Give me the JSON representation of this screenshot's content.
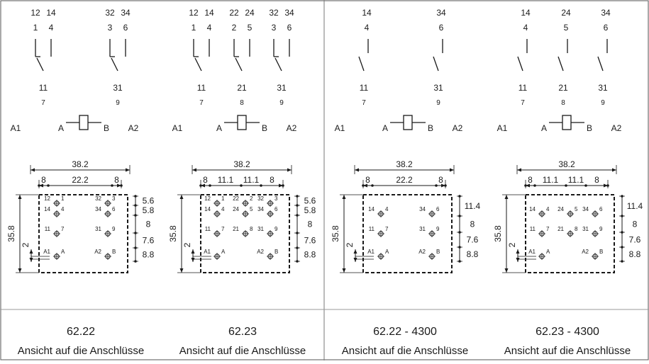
{
  "panels": [
    {
      "id": "6222",
      "model": "62.22",
      "caption": "Ansicht auf die Anschlüsse",
      "schema": {
        "contacts": [
          {
            "top_a": "12",
            "top_b": "14",
            "mid_a": "1",
            "mid_b": "4",
            "common": "11",
            "pin": "7",
            "nc": true
          },
          {
            "top_a": "32",
            "top_b": "34",
            "mid_a": "3",
            "mid_b": "6",
            "common": "31",
            "pin": "9",
            "nc": true
          }
        ],
        "coil": {
          "left": "A1",
          "a": "A",
          "b": "B",
          "right": "A2"
        }
      },
      "dims": {
        "width": "38.2",
        "left": "8",
        "middle": [
          "22.2"
        ],
        "right": "8",
        "height": "35.8",
        "offset": "2",
        "right_dims": [
          "5.6",
          "5.8",
          "8",
          "7.6",
          "8.8"
        ]
      },
      "pins": [
        [
          "12",
          "1"
        ],
        [
          "32",
          "3"
        ],
        [
          "14",
          "4"
        ],
        [
          "34",
          "6"
        ],
        [
          "11",
          "7"
        ],
        [
          "31",
          "9"
        ],
        [
          "A1",
          "A"
        ],
        [
          "A2",
          "B"
        ]
      ]
    },
    {
      "id": "6223",
      "model": "62.23",
      "caption": "Ansicht auf die Anschlüsse",
      "schema": {
        "contacts": [
          {
            "top_a": "12",
            "top_b": "14",
            "mid_a": "1",
            "mid_b": "4",
            "common": "11",
            "pin": "7",
            "nc": true
          },
          {
            "top_a": "22",
            "top_b": "24",
            "mid_a": "2",
            "mid_b": "5",
            "common": "21",
            "pin": "8",
            "nc": true
          },
          {
            "top_a": "32",
            "top_b": "34",
            "mid_a": "3",
            "mid_b": "6",
            "common": "31",
            "pin": "9",
            "nc": true
          }
        ],
        "coil": {
          "left": "A1",
          "a": "A",
          "b": "B",
          "right": "A2"
        }
      },
      "dims": {
        "width": "38.2",
        "left": "8",
        "middle": [
          "11.1",
          "11.1"
        ],
        "right": "8",
        "height": "35.8",
        "offset": "2",
        "right_dims": [
          "5.6",
          "5.8",
          "8",
          "7.6",
          "8.8"
        ]
      },
      "pins": [
        [
          "12",
          "1"
        ],
        [
          "22",
          "2"
        ],
        [
          "32",
          "3"
        ],
        [
          "14",
          "4"
        ],
        [
          "24",
          "5"
        ],
        [
          "34",
          "6"
        ],
        [
          "11",
          "7"
        ],
        [
          "21",
          "8"
        ],
        [
          "31",
          "9"
        ],
        [
          "A1",
          "A"
        ],
        [
          "A2",
          "B"
        ]
      ]
    },
    {
      "id": "6222-4300",
      "model": "62.22 - 4300",
      "caption": "Ansicht auf die Anschlüsse",
      "schema": {
        "contacts": [
          {
            "top_a": "",
            "top_b": "14",
            "mid_a": "",
            "mid_b": "4",
            "common": "11",
            "pin": "7",
            "nc": false
          },
          {
            "top_a": "",
            "top_b": "34",
            "mid_a": "",
            "mid_b": "6",
            "common": "31",
            "pin": "9",
            "nc": false
          }
        ],
        "coil": {
          "left": "A1",
          "a": "A",
          "b": "B",
          "right": "A2"
        }
      },
      "dims": {
        "width": "38.2",
        "left": "8",
        "middle": [
          "22.2"
        ],
        "right": "8",
        "height": "35.8",
        "offset": "2",
        "right_dims": [
          "11.4",
          "8",
          "7.6",
          "8.8"
        ]
      },
      "pins": [
        [
          "14",
          "4"
        ],
        [
          "34",
          "6"
        ],
        [
          "11",
          "7"
        ],
        [
          "31",
          "9"
        ],
        [
          "A1",
          "A"
        ],
        [
          "A2",
          "B"
        ]
      ]
    },
    {
      "id": "6223-4300",
      "model": "62.23 - 4300",
      "caption": "Ansicht auf die Anschlüsse",
      "schema": {
        "contacts": [
          {
            "top_a": "",
            "top_b": "14",
            "mid_a": "",
            "mid_b": "4",
            "common": "11",
            "pin": "7",
            "nc": false
          },
          {
            "top_a": "",
            "top_b": "24",
            "mid_a": "",
            "mid_b": "5",
            "common": "21",
            "pin": "8",
            "nc": false
          },
          {
            "top_a": "",
            "top_b": "34",
            "mid_a": "",
            "mid_b": "6",
            "common": "31",
            "pin": "9",
            "nc": false
          }
        ],
        "coil": {
          "left": "A1",
          "a": "A",
          "b": "B",
          "right": "A2"
        }
      },
      "dims": {
        "width": "38.2",
        "left": "8",
        "middle": [
          "11.1",
          "11.1"
        ],
        "right": "8",
        "height": "35.8",
        "offset": "2",
        "right_dims": [
          "11.4",
          "8",
          "7.6",
          "8.8"
        ]
      },
      "pins": [
        [
          "14",
          "4"
        ],
        [
          "24",
          "5"
        ],
        [
          "34",
          "6"
        ],
        [
          "11",
          "7"
        ],
        [
          "21",
          "8"
        ],
        [
          "31",
          "9"
        ],
        [
          "A1",
          "A"
        ],
        [
          "A2",
          "B"
        ]
      ]
    }
  ]
}
